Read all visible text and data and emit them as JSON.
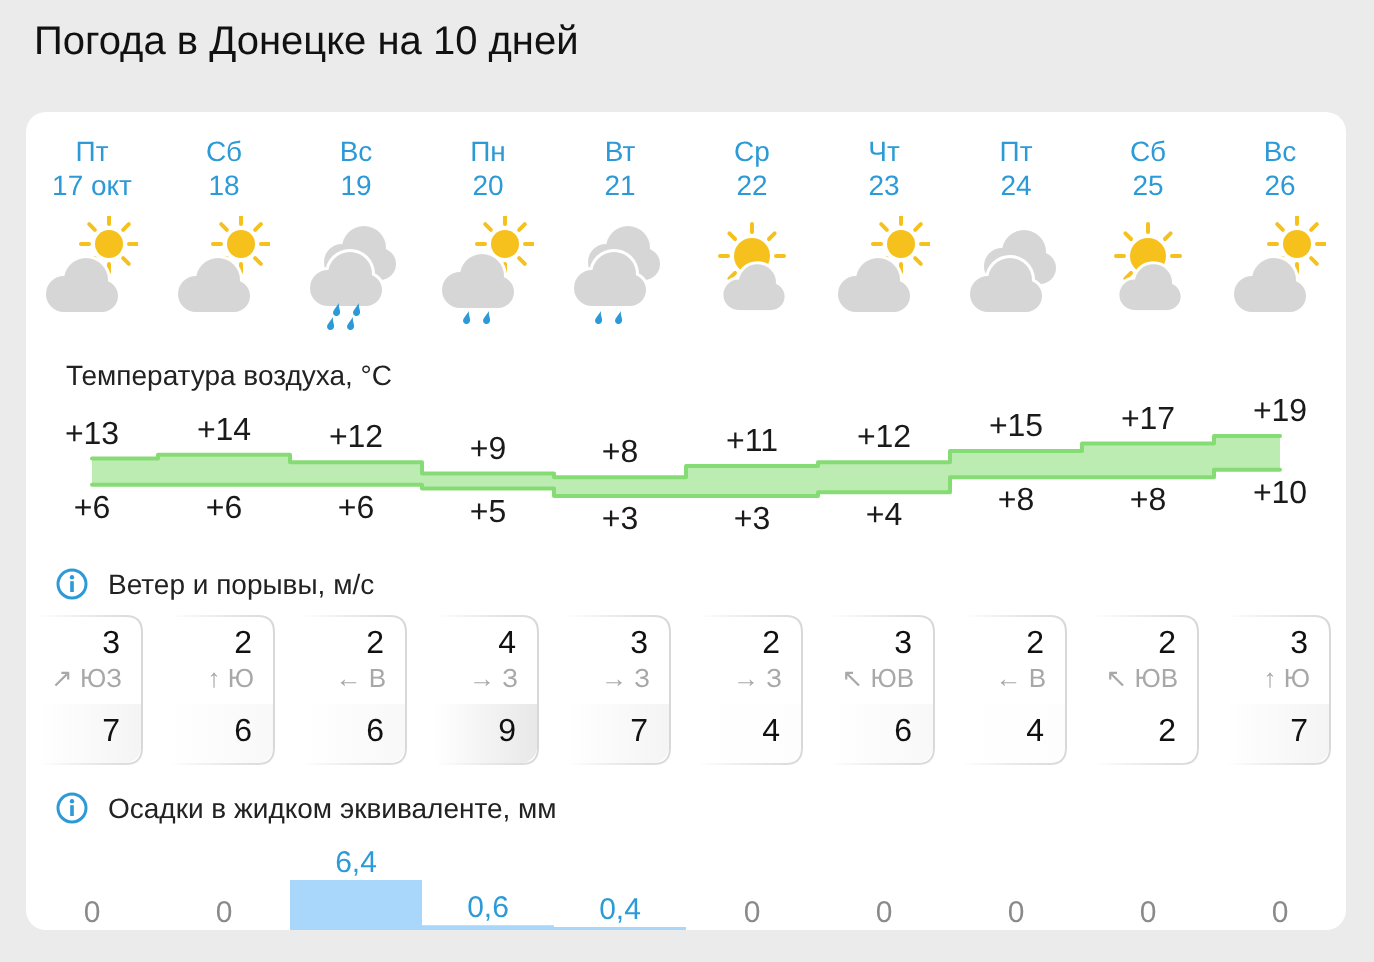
{
  "chart_data": [
    {
      "type": "step",
      "title": "Погода в Донецке на 10 дней",
      "ylabel": "Температура воздуха, °C",
      "categories": [
        "Пт\n17 окт",
        "Сб\n18",
        "Вс\n19",
        "Пн\n20",
        "Вт\n21",
        "Ср\n22",
        "Чт\n23",
        "Пт\n24",
        "Сб\n25",
        "Вс\n26"
      ],
      "series": [
        {
          "color": "#86dc74",
          "values": [
            13,
            14,
            12,
            9,
            8,
            11,
            12,
            15,
            17,
            19
          ],
          "value_labels": [
            "+13",
            "+14",
            "+12",
            "+9",
            "+8",
            "+11",
            "+12",
            "+15",
            "+17",
            "+19"
          ],
          "lower": [
            6,
            6,
            6,
            5,
            3,
            3,
            4,
            8,
            8,
            10
          ],
          "upper": [
            13,
            14,
            12,
            9,
            8,
            11,
            12,
            15,
            17,
            19
          ]
        },
        {
          "color": "#86dc74",
          "values": [
            6,
            6,
            6,
            5,
            3,
            3,
            4,
            8,
            8,
            10
          ],
          "value_labels": [
            "+6",
            "+6",
            "+6",
            "+5",
            "+3",
            "+3",
            "+4",
            "+8",
            "+8",
            "+10"
          ]
        }
      ]
    },
    {
      "type": "other",
      "title": "Ветер и порывы, м/с",
      "categories": [
        "↗ ЮЗ",
        "↑ Ю",
        "← В",
        "→ З",
        "→ З",
        "→ З",
        "↖ ЮВ",
        "← В",
        "↖ ЮВ",
        "↑ Ю"
      ],
      "series": [
        {
          "values": [
            3,
            2,
            2,
            4,
            3,
            2,
            3,
            2,
            2,
            3
          ]
        },
        {
          "values": [
            7,
            6,
            6,
            9,
            7,
            4,
            6,
            4,
            2,
            7
          ]
        }
      ],
      "data_labels": true
    },
    {
      "type": "bar",
      "title": "Осадки в жидком эквиваленте, мм",
      "categories": [
        null,
        null,
        null,
        null,
        null,
        null,
        null,
        null,
        null,
        null
      ],
      "color": "#a9d6fb",
      "values": [
        0,
        0,
        6.4,
        0.6,
        0.4,
        0,
        0,
        0,
        0,
        0
      ],
      "value_labels": [
        "0",
        "0",
        "6,4",
        "0,6",
        "0,4",
        "0",
        "0",
        "0",
        "0",
        "0"
      ]
    }
  ]
}
